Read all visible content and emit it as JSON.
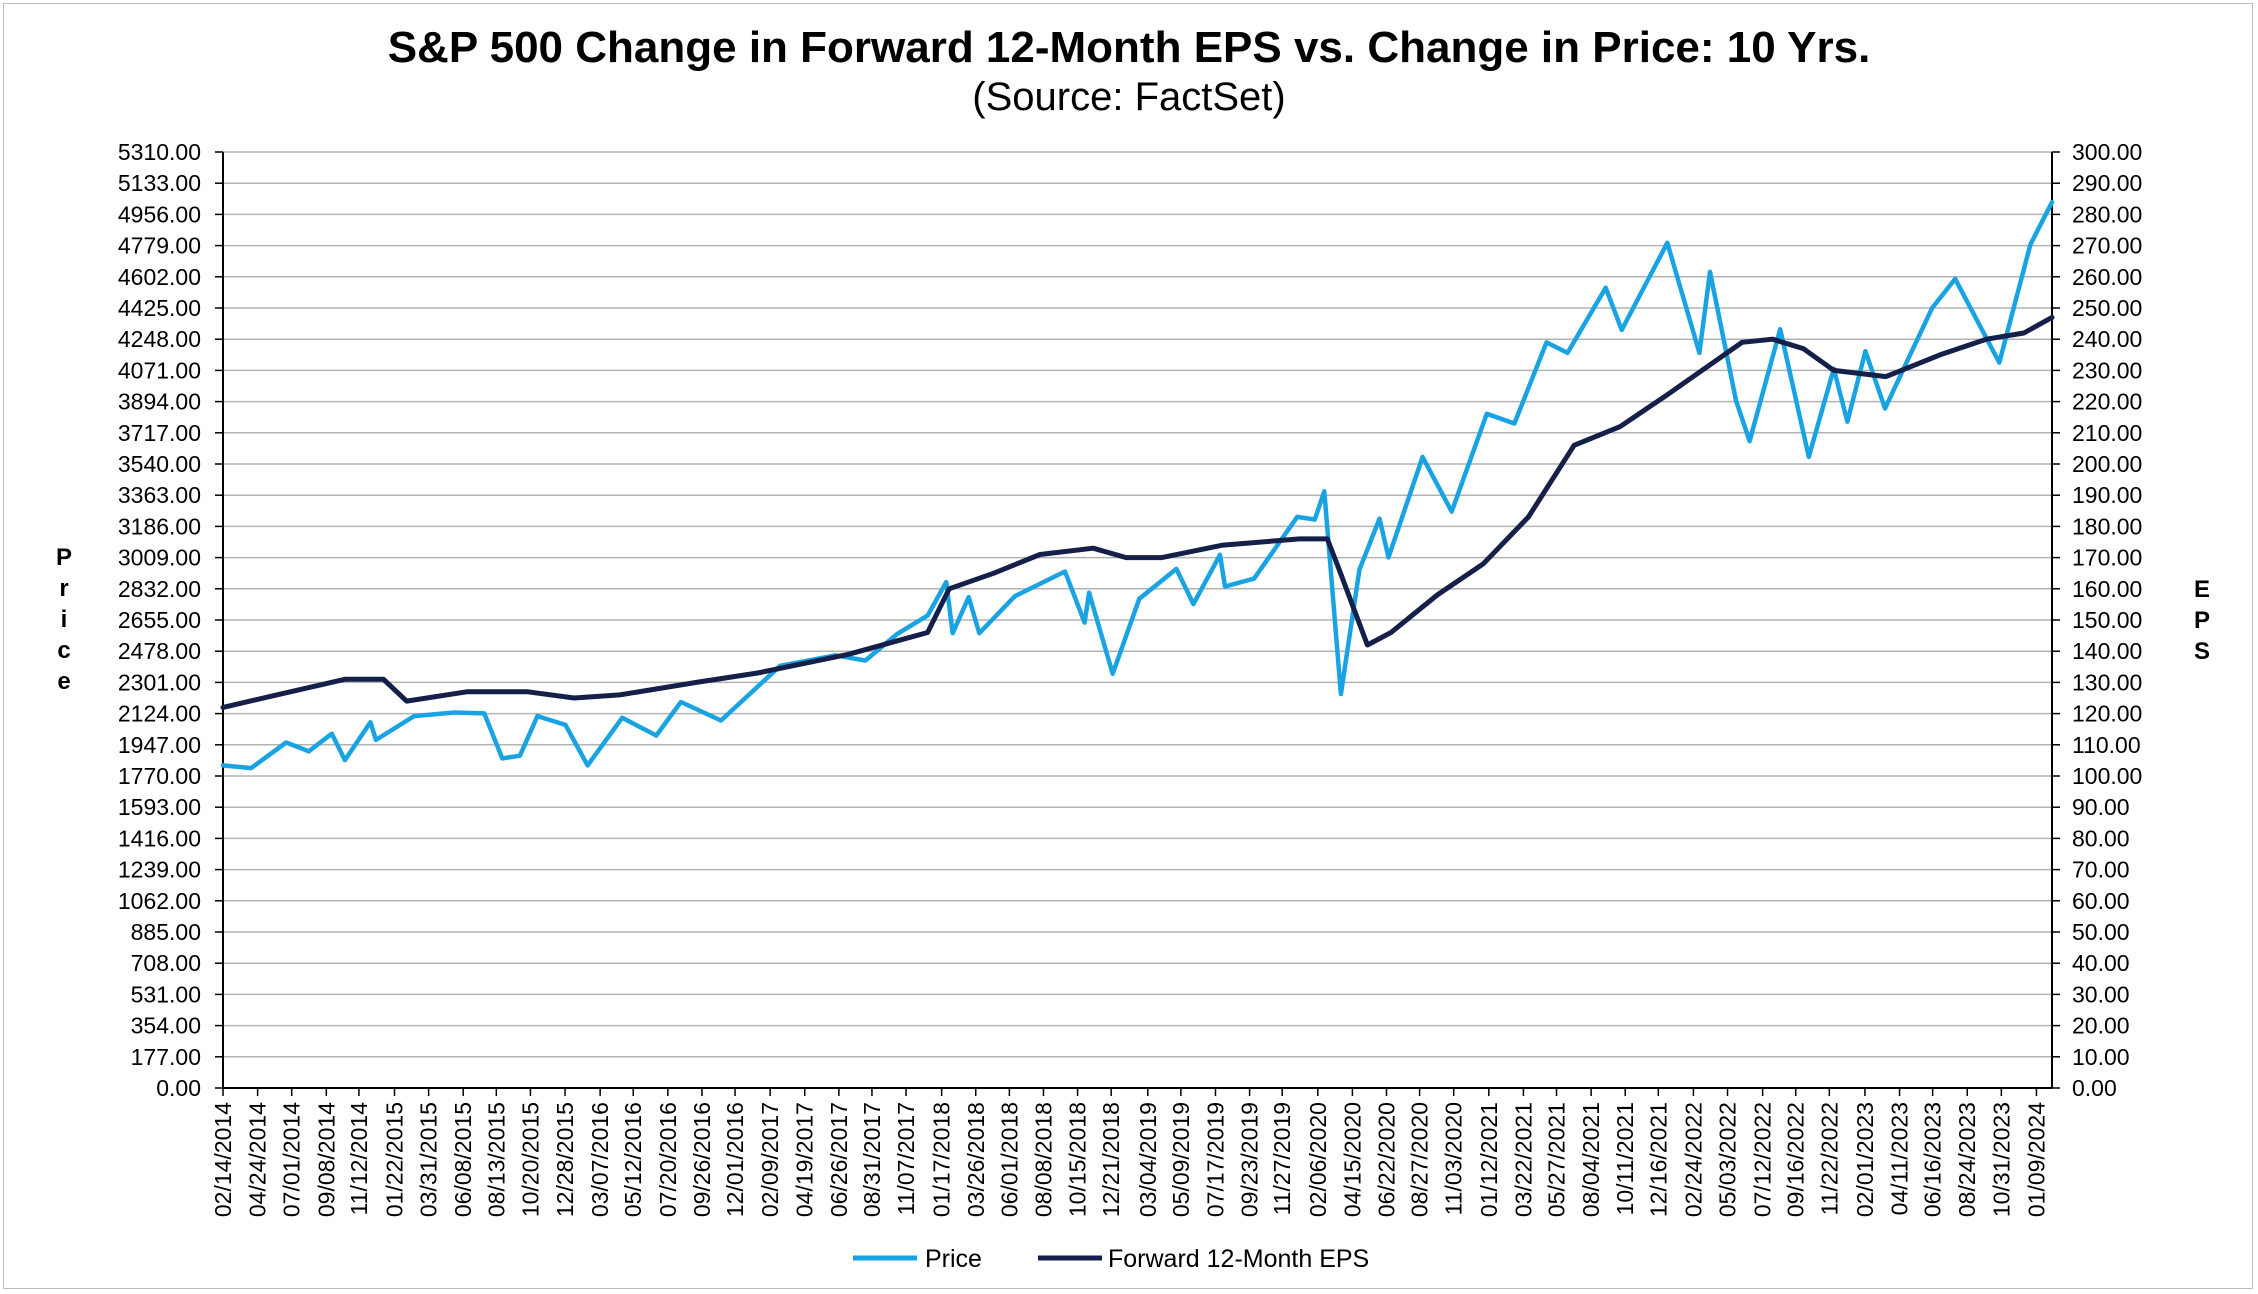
{
  "chart_data": {
    "type": "line",
    "title": "S&P 500 Change in Forward 12-Month EPS vs. Change in Price: 10 Yrs.",
    "subtitle": "(Source: FactSet)",
    "ylabel_left": "Price",
    "ylabel_right": "EPS",
    "ylim_left": [
      0,
      5310
    ],
    "ylim_right": [
      0,
      300
    ],
    "xlim": [
      "2014-02-14",
      "2024-02-09"
    ],
    "grid": true,
    "legend_placement": "bottom-center",
    "colors": {
      "price": "#1aa3e2",
      "eps": "#15204a",
      "grid": "#b3b3b3"
    },
    "y_ticks_left": [
      "5310.00",
      "5133.00",
      "4956.00",
      "4779.00",
      "4602.00",
      "4425.00",
      "4248.00",
      "4071.00",
      "3894.00",
      "3717.00",
      "3540.00",
      "3363.00",
      "3186.00",
      "3009.00",
      "2832.00",
      "2655.00",
      "2478.00",
      "2301.00",
      "2124.00",
      "1947.00",
      "1770.00",
      "1593.00",
      "1416.00",
      "1239.00",
      "1062.00",
      "885.00",
      "708.00",
      "531.00",
      "354.00",
      "177.00",
      "0.00"
    ],
    "y_ticks_right": [
      "300.00",
      "290.00",
      "280.00",
      "270.00",
      "260.00",
      "250.00",
      "240.00",
      "230.00",
      "220.00",
      "210.00",
      "200.00",
      "190.00",
      "180.00",
      "170.00",
      "160.00",
      "150.00",
      "140.00",
      "130.00",
      "120.00",
      "110.00",
      "100.00",
      "90.00",
      "80.00",
      "70.00",
      "60.00",
      "50.00",
      "40.00",
      "30.00",
      "20.00",
      "10.00",
      "0.00"
    ],
    "x_ticks": [
      {
        "label": "02/14/2014",
        "date": "2014-02-14"
      },
      {
        "label": "04/24/2014",
        "date": "2014-04-24"
      },
      {
        "label": "07/01/2014",
        "date": "2014-07-01"
      },
      {
        "label": "09/08/2014",
        "date": "2014-09-08"
      },
      {
        "label": "11/12/2014",
        "date": "2014-11-12"
      },
      {
        "label": "01/22/2015",
        "date": "2015-01-22"
      },
      {
        "label": "03/31/2015",
        "date": "2015-03-31"
      },
      {
        "label": "06/08/2015",
        "date": "2015-06-08"
      },
      {
        "label": "08/13/2015",
        "date": "2015-08-13"
      },
      {
        "label": "10/20/2015",
        "date": "2015-10-20"
      },
      {
        "label": "12/28/2015",
        "date": "2015-12-28"
      },
      {
        "label": "03/07/2016",
        "date": "2016-03-07"
      },
      {
        "label": "05/12/2016",
        "date": "2016-05-12"
      },
      {
        "label": "07/20/2016",
        "date": "2016-07-20"
      },
      {
        "label": "09/26/2016",
        "date": "2016-09-26"
      },
      {
        "label": "12/01/2016",
        "date": "2016-12-01"
      },
      {
        "label": "02/09/2017",
        "date": "2017-02-09"
      },
      {
        "label": "04/19/2017",
        "date": "2017-04-19"
      },
      {
        "label": "06/26/2017",
        "date": "2017-06-26"
      },
      {
        "label": "08/31/2017",
        "date": "2017-08-31"
      },
      {
        "label": "11/07/2017",
        "date": "2017-11-07"
      },
      {
        "label": "01/17/2018",
        "date": "2018-01-17"
      },
      {
        "label": "03/26/2018",
        "date": "2018-03-26"
      },
      {
        "label": "06/01/2018",
        "date": "2018-06-01"
      },
      {
        "label": "08/08/2018",
        "date": "2018-08-08"
      },
      {
        "label": "10/15/2018",
        "date": "2018-10-15"
      },
      {
        "label": "12/21/2018",
        "date": "2018-12-21"
      },
      {
        "label": "03/04/2019",
        "date": "2019-03-04"
      },
      {
        "label": "05/09/2019",
        "date": "2019-05-09"
      },
      {
        "label": "07/17/2019",
        "date": "2019-07-17"
      },
      {
        "label": "09/23/2019",
        "date": "2019-09-23"
      },
      {
        "label": "11/27/2019",
        "date": "2019-11-27"
      },
      {
        "label": "02/06/2020",
        "date": "2020-02-06"
      },
      {
        "label": "04/15/2020",
        "date": "2020-04-15"
      },
      {
        "label": "06/22/2020",
        "date": "2020-06-22"
      },
      {
        "label": "08/27/2020",
        "date": "2020-08-27"
      },
      {
        "label": "11/03/2020",
        "date": "2020-11-03"
      },
      {
        "label": "01/12/2021",
        "date": "2021-01-12"
      },
      {
        "label": "03/22/2021",
        "date": "2021-03-22"
      },
      {
        "label": "05/27/2021",
        "date": "2021-05-27"
      },
      {
        "label": "08/04/2021",
        "date": "2021-08-04"
      },
      {
        "label": "10/11/2021",
        "date": "2021-10-11"
      },
      {
        "label": "12/16/2021",
        "date": "2021-12-16"
      },
      {
        "label": "02/24/2022",
        "date": "2022-02-24"
      },
      {
        "label": "05/03/2022",
        "date": "2022-05-03"
      },
      {
        "label": "07/12/2022",
        "date": "2022-07-12"
      },
      {
        "label": "09/16/2022",
        "date": "2022-09-16"
      },
      {
        "label": "11/22/2022",
        "date": "2022-11-22"
      },
      {
        "label": "02/01/2023",
        "date": "2023-02-01"
      },
      {
        "label": "04/11/2023",
        "date": "2023-04-11"
      },
      {
        "label": "06/16/2023",
        "date": "2023-06-16"
      },
      {
        "label": "08/24/2023",
        "date": "2023-08-24"
      },
      {
        "label": "10/31/2023",
        "date": "2023-10-31"
      },
      {
        "label": "01/09/2024",
        "date": "2024-01-09"
      }
    ],
    "series": [
      {
        "name": "Price",
        "axis": "left",
        "points": [
          [
            "2014-02-14",
            1830
          ],
          [
            "2014-04-11",
            1815
          ],
          [
            "2014-06-20",
            1960
          ],
          [
            "2014-08-04",
            1910
          ],
          [
            "2014-09-19",
            2010
          ],
          [
            "2014-10-15",
            1860
          ],
          [
            "2014-12-05",
            2075
          ],
          [
            "2014-12-16",
            1975
          ],
          [
            "2015-03-02",
            2110
          ],
          [
            "2015-05-21",
            2130
          ],
          [
            "2015-07-20",
            2125
          ],
          [
            "2015-08-25",
            1870
          ],
          [
            "2015-09-29",
            1885
          ],
          [
            "2015-11-03",
            2110
          ],
          [
            "2015-12-29",
            2060
          ],
          [
            "2016-02-11",
            1830
          ],
          [
            "2016-04-20",
            2100
          ],
          [
            "2016-06-27",
            2000
          ],
          [
            "2016-08-15",
            2190
          ],
          [
            "2016-11-03",
            2085
          ],
          [
            "2017-03-01",
            2395
          ],
          [
            "2017-06-19",
            2455
          ],
          [
            "2017-08-18",
            2425
          ],
          [
            "2017-10-20",
            2575
          ],
          [
            "2017-12-20",
            2680
          ],
          [
            "2018-01-26",
            2870
          ],
          [
            "2018-02-08",
            2580
          ],
          [
            "2018-03-12",
            2785
          ],
          [
            "2018-04-02",
            2580
          ],
          [
            "2018-06-12",
            2790
          ],
          [
            "2018-09-20",
            2930
          ],
          [
            "2018-10-29",
            2640
          ],
          [
            "2018-11-07",
            2810
          ],
          [
            "2018-12-24",
            2350
          ],
          [
            "2019-02-15",
            2775
          ],
          [
            "2019-04-30",
            2945
          ],
          [
            "2019-06-03",
            2745
          ],
          [
            "2019-07-26",
            3025
          ],
          [
            "2019-08-05",
            2845
          ],
          [
            "2019-10-02",
            2890
          ],
          [
            "2019-12-27",
            3240
          ],
          [
            "2020-01-31",
            3225
          ],
          [
            "2020-02-19",
            3385
          ],
          [
            "2020-03-23",
            2235
          ],
          [
            "2020-04-29",
            2940
          ],
          [
            "2020-06-08",
            3230
          ],
          [
            "2020-06-26",
            3010
          ],
          [
            "2020-09-02",
            3580
          ],
          [
            "2020-10-30",
            3270
          ],
          [
            "2021-01-08",
            3825
          ],
          [
            "2021-03-04",
            3770
          ],
          [
            "2021-05-07",
            4230
          ],
          [
            "2021-06-18",
            4170
          ],
          [
            "2021-09-02",
            4540
          ],
          [
            "2021-10-04",
            4300
          ],
          [
            "2022-01-03",
            4795
          ],
          [
            "2022-03-08",
            4170
          ],
          [
            "2022-03-29",
            4630
          ],
          [
            "2022-05-20",
            3900
          ],
          [
            "2022-06-16",
            3670
          ],
          [
            "2022-08-16",
            4305
          ],
          [
            "2022-10-12",
            3580
          ],
          [
            "2022-12-01",
            4080
          ],
          [
            "2022-12-28",
            3780
          ],
          [
            "2023-02-02",
            4180
          ],
          [
            "2023-03-13",
            3855
          ],
          [
            "2023-06-15",
            4425
          ],
          [
            "2023-07-31",
            4590
          ],
          [
            "2023-10-27",
            4115
          ],
          [
            "2023-12-28",
            4785
          ],
          [
            "2024-02-09",
            5025
          ]
        ]
      },
      {
        "name": "Forward 12-Month EPS",
        "axis": "right",
        "points": [
          [
            "2014-02-14",
            122
          ],
          [
            "2014-06-01",
            126
          ],
          [
            "2014-10-15",
            131
          ],
          [
            "2014-12-31",
            131
          ],
          [
            "2015-02-15",
            124
          ],
          [
            "2015-06-15",
            127
          ],
          [
            "2015-10-15",
            127
          ],
          [
            "2016-01-15",
            125
          ],
          [
            "2016-04-15",
            126
          ],
          [
            "2016-09-15",
            130
          ],
          [
            "2017-01-15",
            133
          ],
          [
            "2017-07-15",
            139
          ],
          [
            "2017-12-20",
            146
          ],
          [
            "2018-02-01",
            160
          ],
          [
            "2018-05-01",
            165
          ],
          [
            "2018-08-01",
            171
          ],
          [
            "2018-11-15",
            173
          ],
          [
            "2019-01-20",
            170
          ],
          [
            "2019-04-01",
            170
          ],
          [
            "2019-08-01",
            174
          ],
          [
            "2020-01-01",
            176
          ],
          [
            "2020-02-25",
            176
          ],
          [
            "2020-03-20",
            166
          ],
          [
            "2020-05-15",
            142
          ],
          [
            "2020-07-01",
            146
          ],
          [
            "2020-10-01",
            158
          ],
          [
            "2021-01-01",
            168
          ],
          [
            "2021-04-01",
            183
          ],
          [
            "2021-07-01",
            206
          ],
          [
            "2021-10-01",
            212
          ],
          [
            "2022-01-01",
            222
          ],
          [
            "2022-06-01",
            239
          ],
          [
            "2022-08-01",
            240
          ],
          [
            "2022-10-01",
            237
          ],
          [
            "2022-12-01",
            230
          ],
          [
            "2023-03-15",
            228
          ],
          [
            "2023-07-01",
            235
          ],
          [
            "2023-10-01",
            240
          ],
          [
            "2023-12-15",
            242
          ],
          [
            "2024-02-09",
            247
          ]
        ]
      }
    ]
  }
}
